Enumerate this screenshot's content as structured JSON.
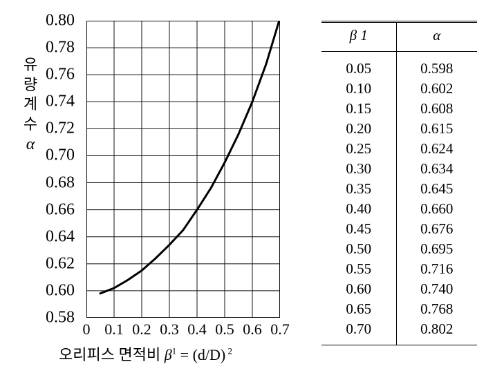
{
  "chart": {
    "type": "line",
    "background_color": "#ffffff",
    "axis_color": "#101010",
    "grid_color": "#101010",
    "curve_color": "#000000",
    "font_color": "#000000",
    "axis_stroke": 2,
    "grid_stroke": 1,
    "curve_stroke": 3,
    "tick_fontsize": 24,
    "label_fontsize": 22,
    "xlim": [
      0,
      0.7
    ],
    "ylim": [
      0.58,
      0.8
    ],
    "x_ticks": [
      "0",
      "0.1",
      "0.2",
      "0.3",
      "0.4",
      "0.5",
      "0.6",
      "0.7"
    ],
    "y_ticks": [
      "0.58",
      "0.60",
      "0.62",
      "0.64",
      "0.66",
      "0.68",
      "0.70",
      "0.72",
      "0.74",
      "0.76",
      "0.78",
      "0.80"
    ],
    "y_axis_label_chars": [
      "유",
      "량",
      "계",
      "수"
    ],
    "y_axis_symbol": "α",
    "x_axis_label_pre": "오리피스 면적비 ",
    "x_axis_symbol": "β",
    "x_axis_sup1": "1",
    "x_axis_eq": " = (d/D)",
    "x_axis_sup2": " 2",
    "curve": {
      "x": [
        0.05,
        0.1,
        0.15,
        0.2,
        0.25,
        0.3,
        0.35,
        0.4,
        0.45,
        0.5,
        0.55,
        0.6,
        0.65,
        0.7
      ],
      "y": [
        0.598,
        0.602,
        0.608,
        0.615,
        0.624,
        0.634,
        0.645,
        0.66,
        0.676,
        0.695,
        0.716,
        0.74,
        0.768,
        0.802
      ]
    }
  },
  "table": {
    "header_beta": "β 1",
    "header_alpha": "α",
    "rows": [
      [
        "0.05",
        "0.598"
      ],
      [
        "0.10",
        "0.602"
      ],
      [
        "0.15",
        "0.608"
      ],
      [
        "0.20",
        "0.615"
      ],
      [
        "0.25",
        "0.624"
      ],
      [
        "0.30",
        "0.634"
      ],
      [
        "0.35",
        "0.645"
      ],
      [
        "0.40",
        "0.660"
      ],
      [
        "0.45",
        "0.676"
      ],
      [
        "0.50",
        "0.695"
      ],
      [
        "0.55",
        "0.716"
      ],
      [
        "0.60",
        "0.740"
      ],
      [
        "0.65",
        "0.768"
      ],
      [
        "0.70",
        "0.802"
      ]
    ]
  }
}
